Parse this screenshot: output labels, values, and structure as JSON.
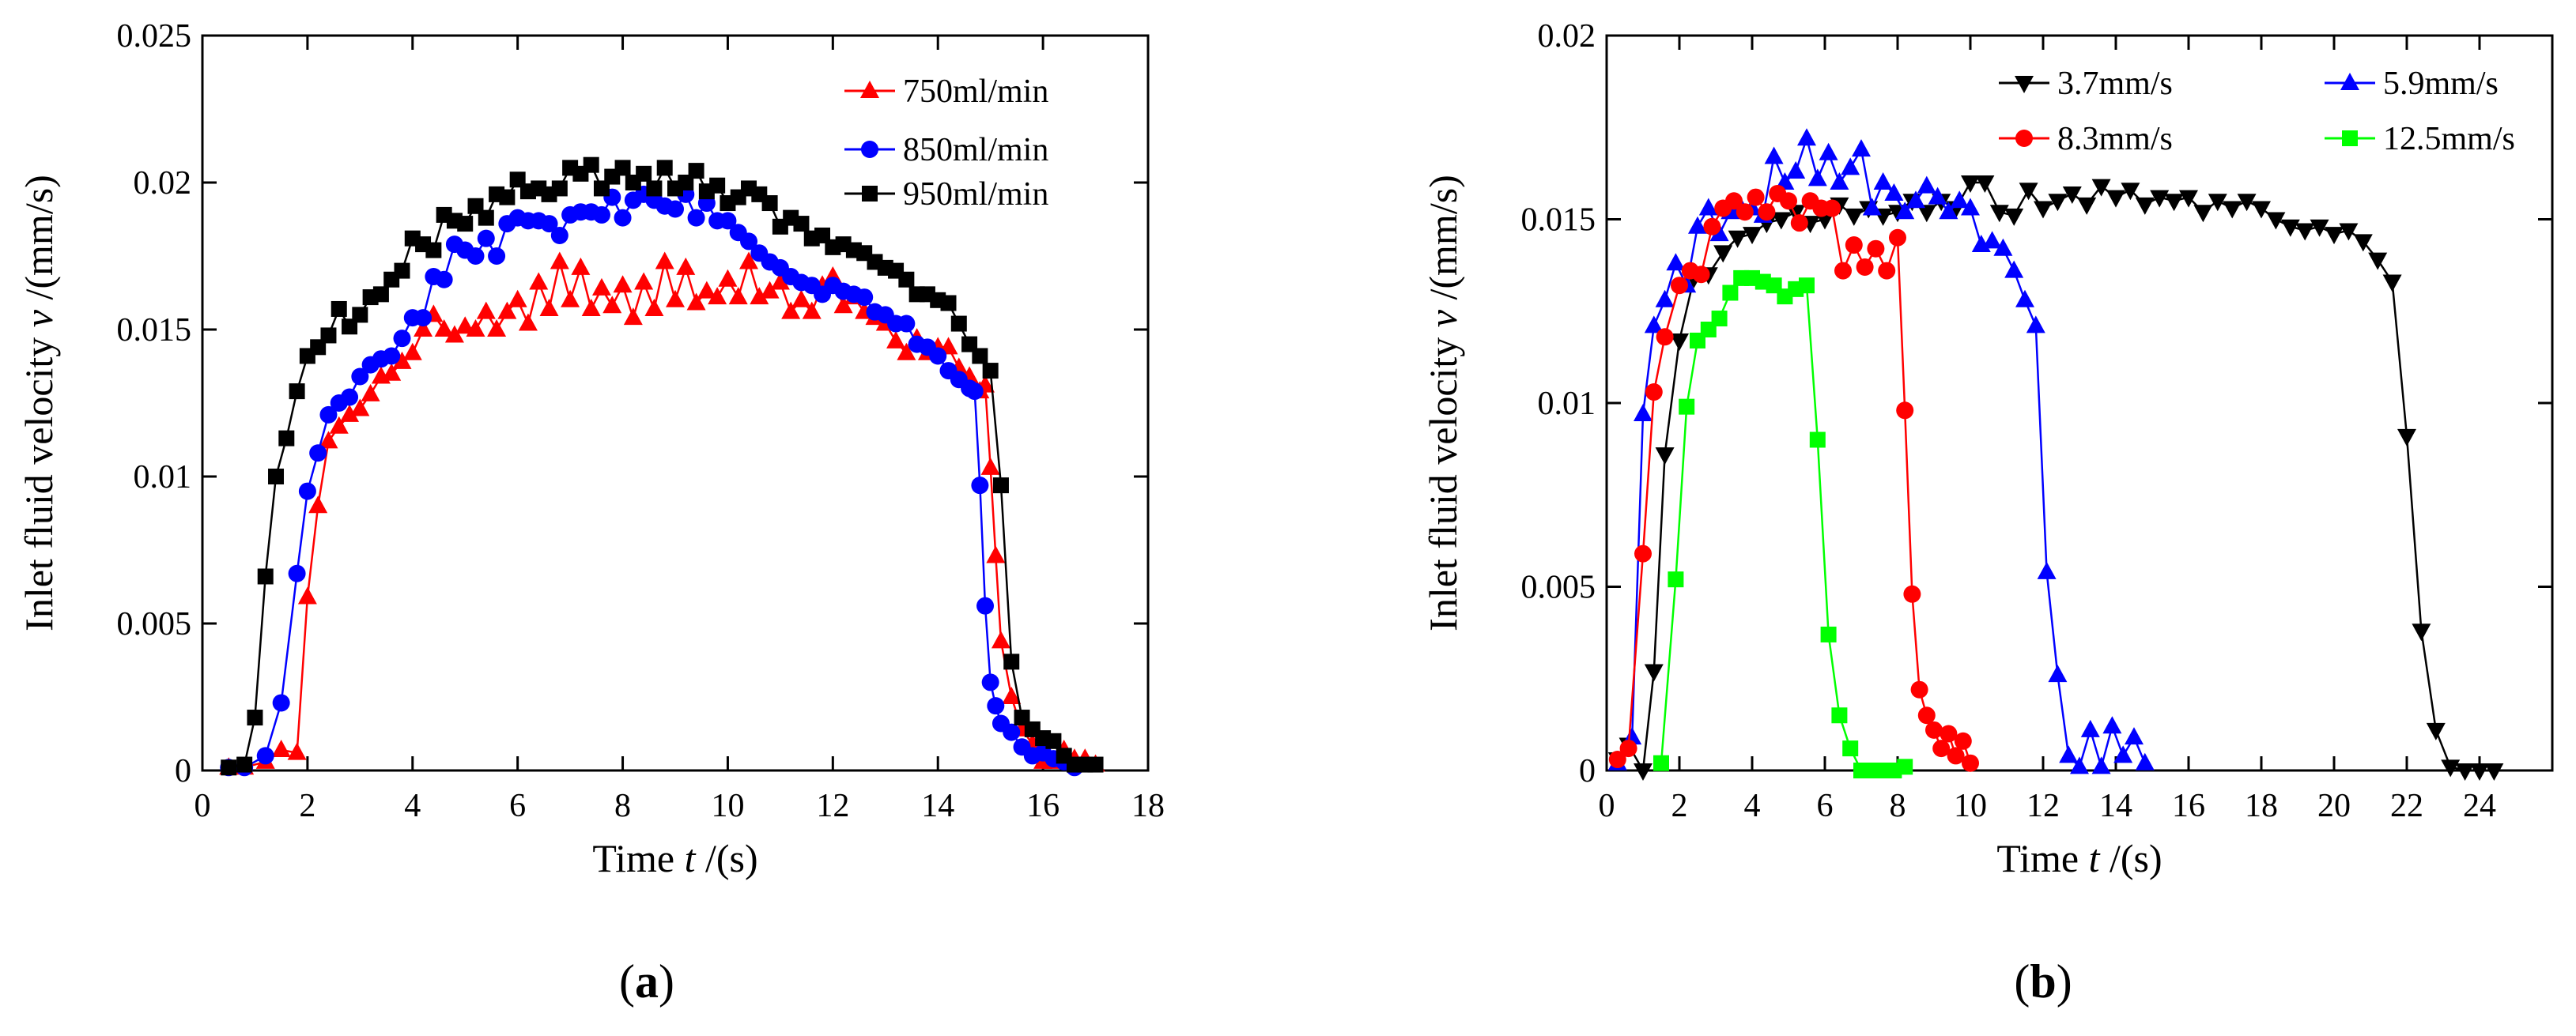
{
  "chart_data": [
    {
      "type": "line",
      "panel_label": "(a)",
      "panel_letter": "a",
      "xlabel_prefix": "Time ",
      "xlabel_var": "t",
      "xlabel_suffix": " /(s)",
      "ylabel_prefix": "Inlet fluid velocity ",
      "ylabel_var": "v",
      "ylabel_suffix": " /(mm/s)",
      "xlim": [
        0,
        18
      ],
      "ylim": [
        0,
        0.025
      ],
      "xticks": [
        0,
        2,
        4,
        6,
        8,
        10,
        12,
        14,
        16,
        18
      ],
      "yticks": [
        0,
        0.005,
        0.01,
        0.015,
        0.02,
        0.025
      ],
      "xtick_labels": [
        "0",
        "2",
        "4",
        "6",
        "8",
        "10",
        "12",
        "14",
        "16",
        "18"
      ],
      "ytick_labels": [
        "0",
        "0.005",
        "0.01",
        "0.015",
        "0.02",
        "0.025"
      ],
      "legend_position": "top-right",
      "series": [
        {
          "name": "750ml/min",
          "color": "#ff0000",
          "marker": "triangle-up",
          "x": [
            0.5,
            0.8,
            1.2,
            1.5,
            1.8,
            2.0,
            2.2,
            2.4,
            2.6,
            2.8,
            3.0,
            3.2,
            3.4,
            3.6,
            3.8,
            4.0,
            4.2,
            4.4,
            4.6,
            4.8,
            5.0,
            5.2,
            5.4,
            5.6,
            5.8,
            6.0,
            6.2,
            6.4,
            6.6,
            6.8,
            7.0,
            7.2,
            7.4,
            7.6,
            7.8,
            8.0,
            8.2,
            8.4,
            8.6,
            8.8,
            9.0,
            9.2,
            9.4,
            9.6,
            9.8,
            10.0,
            10.2,
            10.4,
            10.6,
            10.8,
            11.0,
            11.2,
            11.4,
            11.6,
            11.8,
            12.0,
            12.2,
            12.4,
            12.6,
            12.8,
            13.0,
            13.2,
            13.4,
            13.6,
            13.8,
            14.0,
            14.2,
            14.4,
            14.6,
            14.8,
            14.9,
            15.0,
            15.1,
            15.2,
            15.4,
            15.6,
            15.8,
            16.0,
            16.2,
            16.4,
            16.6,
            16.8,
            17.0
          ],
          "y": [
            0.0001,
            0.0001,
            0.0003,
            0.0007,
            0.0006,
            0.0059,
            0.009,
            0.0112,
            0.0117,
            0.0121,
            0.0123,
            0.0128,
            0.0134,
            0.0135,
            0.0139,
            0.0142,
            0.015,
            0.0155,
            0.015,
            0.0148,
            0.0151,
            0.015,
            0.0156,
            0.015,
            0.0156,
            0.016,
            0.0152,
            0.0166,
            0.0157,
            0.0173,
            0.016,
            0.0171,
            0.0157,
            0.0164,
            0.0158,
            0.0165,
            0.0154,
            0.0166,
            0.0157,
            0.0173,
            0.016,
            0.0171,
            0.0159,
            0.0163,
            0.0161,
            0.0167,
            0.0161,
            0.0173,
            0.0161,
            0.0163,
            0.0166,
            0.0156,
            0.016,
            0.0156,
            0.0165,
            0.0168,
            0.0158,
            0.0161,
            0.0156,
            0.0154,
            0.0152,
            0.0146,
            0.0142,
            0.0147,
            0.0142,
            0.0144,
            0.0144,
            0.0137,
            0.0134,
            0.0129,
            0.0131,
            0.0103,
            0.0073,
            0.0044,
            0.0025,
            0.0014,
            0.0009,
            0.0003,
            0.0003,
            0.0007,
            0.0004,
            0.0004,
            0.0002
          ]
        },
        {
          "name": "850ml/min",
          "color": "#0000ff",
          "marker": "circle",
          "x": [
            0.5,
            0.8,
            1.2,
            1.5,
            1.8,
            2.0,
            2.2,
            2.4,
            2.6,
            2.8,
            3.0,
            3.2,
            3.4,
            3.6,
            3.8,
            4.0,
            4.2,
            4.4,
            4.6,
            4.8,
            5.0,
            5.2,
            5.4,
            5.6,
            5.8,
            6.0,
            6.2,
            6.4,
            6.6,
            6.8,
            7.0,
            7.2,
            7.4,
            7.6,
            7.8,
            8.0,
            8.2,
            8.4,
            8.6,
            8.8,
            9.0,
            9.2,
            9.4,
            9.6,
            9.8,
            10.0,
            10.2,
            10.4,
            10.6,
            10.8,
            11.0,
            11.2,
            11.4,
            11.6,
            11.8,
            12.0,
            12.2,
            12.4,
            12.6,
            12.8,
            13.0,
            13.2,
            13.4,
            13.6,
            13.8,
            14.0,
            14.2,
            14.4,
            14.6,
            14.7,
            14.8,
            14.9,
            15.0,
            15.1,
            15.2,
            15.4,
            15.6,
            15.8,
            16.0,
            16.2,
            16.4,
            16.6
          ],
          "y": [
            0.0001,
            0.0001,
            0.0005,
            0.0023,
            0.0067,
            0.0095,
            0.0108,
            0.0121,
            0.0125,
            0.0127,
            0.0134,
            0.0138,
            0.014,
            0.0141,
            0.0147,
            0.0154,
            0.0154,
            0.0168,
            0.0167,
            0.0179,
            0.0177,
            0.0175,
            0.0181,
            0.0175,
            0.0186,
            0.0188,
            0.0187,
            0.0187,
            0.0186,
            0.0182,
            0.0189,
            0.019,
            0.019,
            0.0189,
            0.0195,
            0.0188,
            0.0194,
            0.0196,
            0.0194,
            0.0192,
            0.0191,
            0.0196,
            0.0188,
            0.0193,
            0.0187,
            0.0187,
            0.0183,
            0.018,
            0.0176,
            0.0173,
            0.0171,
            0.0168,
            0.0166,
            0.0165,
            0.0162,
            0.0165,
            0.0163,
            0.0162,
            0.0161,
            0.0156,
            0.0155,
            0.0152,
            0.0152,
            0.0145,
            0.0144,
            0.0141,
            0.0136,
            0.0133,
            0.013,
            0.0129,
            0.0097,
            0.0056,
            0.003,
            0.0022,
            0.0016,
            0.0013,
            0.0008,
            0.0005,
            0.0006,
            0.0004,
            0.0003,
            0.0001
          ]
        },
        {
          "name": "950ml/min",
          "color": "#000000",
          "marker": "square",
          "x": [
            0.5,
            0.8,
            1.0,
            1.2,
            1.4,
            1.6,
            1.8,
            2.0,
            2.2,
            2.4,
            2.6,
            2.8,
            3.0,
            3.2,
            3.4,
            3.6,
            3.8,
            4.0,
            4.2,
            4.4,
            4.6,
            4.8,
            5.0,
            5.2,
            5.4,
            5.6,
            5.8,
            6.0,
            6.2,
            6.4,
            6.6,
            6.8,
            7.0,
            7.2,
            7.4,
            7.6,
            7.8,
            8.0,
            8.2,
            8.4,
            8.6,
            8.8,
            9.0,
            9.2,
            9.4,
            9.6,
            9.8,
            10.0,
            10.2,
            10.4,
            10.6,
            10.8,
            11.0,
            11.2,
            11.4,
            11.6,
            11.8,
            12.0,
            12.2,
            12.4,
            12.6,
            12.8,
            13.0,
            13.2,
            13.4,
            13.6,
            13.8,
            14.0,
            14.2,
            14.4,
            14.6,
            14.8,
            15.0,
            15.2,
            15.4,
            15.6,
            15.8,
            16.0,
            16.2,
            16.4,
            16.6,
            16.8,
            17.0
          ],
          "y": [
            0.0001,
            0.0002,
            0.0018,
            0.0066,
            0.01,
            0.0113,
            0.0129,
            0.0141,
            0.0144,
            0.0148,
            0.0157,
            0.0151,
            0.0155,
            0.0161,
            0.0162,
            0.0167,
            0.017,
            0.0181,
            0.0179,
            0.0177,
            0.0189,
            0.0187,
            0.0186,
            0.0192,
            0.0188,
            0.0196,
            0.0195,
            0.0201,
            0.0197,
            0.0198,
            0.0196,
            0.0198,
            0.0205,
            0.0203,
            0.0206,
            0.0198,
            0.0202,
            0.0205,
            0.02,
            0.0203,
            0.0198,
            0.0205,
            0.0198,
            0.02,
            0.0204,
            0.0197,
            0.0199,
            0.0193,
            0.0195,
            0.0198,
            0.0196,
            0.0193,
            0.0185,
            0.0188,
            0.0186,
            0.0181,
            0.0182,
            0.0178,
            0.0179,
            0.0177,
            0.0176,
            0.0173,
            0.0171,
            0.017,
            0.0167,
            0.0162,
            0.0162,
            0.016,
            0.0159,
            0.0152,
            0.0145,
            0.0141,
            0.0136,
            0.0097,
            0.0037,
            0.0018,
            0.0014,
            0.0011,
            0.001,
            0.0005,
            0.0002,
            0.0002,
            0.0002
          ]
        }
      ]
    },
    {
      "type": "line",
      "panel_label": "(b)",
      "panel_letter": "b",
      "xlabel_prefix": "Time ",
      "xlabel_var": "t",
      "xlabel_suffix": " /(s)",
      "ylabel_prefix": "Inlet fluid velocity ",
      "ylabel_var": "v",
      "ylabel_suffix": " /(mm/s)",
      "xlim": [
        0,
        26
      ],
      "ylim": [
        0,
        0.02
      ],
      "xticks": [
        0,
        2,
        4,
        6,
        8,
        10,
        12,
        14,
        16,
        18,
        20,
        22,
        24
      ],
      "yticks": [
        0,
        0.005,
        0.01,
        0.015,
        0.02
      ],
      "xtick_labels": [
        "0",
        "2",
        "4",
        "6",
        "8",
        "10",
        "12",
        "14",
        "16",
        "18",
        "20",
        "22",
        "24"
      ],
      "ytick_labels": [
        "0",
        "0.005",
        "0.01",
        "0.015",
        "0.02"
      ],
      "legend_position": "top-right",
      "series": [
        {
          "name": "3.7mm/s",
          "color": "#000000",
          "marker": "triangle-down",
          "x": [
            0.3,
            0.6,
            1.0,
            1.3,
            1.6,
            2.0,
            2.4,
            2.8,
            3.2,
            3.6,
            4.0,
            4.4,
            4.8,
            5.2,
            5.6,
            6.0,
            6.4,
            6.8,
            7.2,
            7.6,
            8.0,
            8.4,
            8.8,
            9.2,
            9.6,
            10.0,
            10.4,
            10.8,
            11.2,
            11.6,
            12.0,
            12.4,
            12.8,
            13.2,
            13.6,
            14.0,
            14.4,
            14.8,
            15.2,
            15.6,
            16.0,
            16.4,
            16.8,
            17.2,
            17.6,
            18.0,
            18.4,
            18.8,
            19.2,
            19.6,
            20.0,
            20.4,
            20.8,
            21.2,
            21.6,
            22.0,
            22.4,
            22.8,
            23.2,
            23.6,
            24.0,
            24.4
          ],
          "y": [
            0.0003,
            0.0007,
            0.0,
            0.0027,
            0.0086,
            0.0117,
            0.0134,
            0.0135,
            0.0141,
            0.0145,
            0.0146,
            0.0149,
            0.015,
            0.0152,
            0.0149,
            0.015,
            0.0154,
            0.0151,
            0.0153,
            0.0151,
            0.0152,
            0.0155,
            0.0152,
            0.0155,
            0.0153,
            0.016,
            0.016,
            0.0152,
            0.0151,
            0.0158,
            0.0153,
            0.0155,
            0.0157,
            0.0154,
            0.0159,
            0.0156,
            0.0158,
            0.0154,
            0.0156,
            0.0155,
            0.0156,
            0.0152,
            0.0155,
            0.0153,
            0.0155,
            0.0153,
            0.015,
            0.0148,
            0.0147,
            0.0148,
            0.0146,
            0.0147,
            0.0144,
            0.0139,
            0.0133,
            0.0091,
            0.0038,
            0.0011,
            0.0001,
            0.0,
            0.0,
            0.0
          ]
        },
        {
          "name": "5.9mm/s",
          "color": "#0000ff",
          "marker": "triangle-up",
          "x": [
            0.3,
            0.7,
            1.0,
            1.3,
            1.6,
            1.9,
            2.2,
            2.5,
            2.8,
            3.1,
            3.4,
            3.7,
            4.0,
            4.3,
            4.6,
            4.9,
            5.2,
            5.5,
            5.8,
            6.1,
            6.4,
            6.7,
            7.0,
            7.3,
            7.6,
            7.9,
            8.2,
            8.5,
            8.8,
            9.1,
            9.4,
            9.7,
            10.0,
            10.3,
            10.6,
            10.9,
            11.2,
            11.5,
            11.8,
            12.1,
            12.4,
            12.7,
            13.0,
            13.3,
            13.6,
            13.9,
            14.2,
            14.5,
            14.8
          ],
          "y": [
            0.0002,
            0.0009,
            0.0097,
            0.0121,
            0.0128,
            0.0138,
            0.0132,
            0.0148,
            0.0153,
            0.0146,
            0.0152,
            0.0153,
            0.0153,
            0.0151,
            0.0167,
            0.016,
            0.0163,
            0.0172,
            0.0161,
            0.0168,
            0.016,
            0.0164,
            0.0169,
            0.0153,
            0.016,
            0.0157,
            0.0152,
            0.0155,
            0.0159,
            0.0156,
            0.0152,
            0.0155,
            0.0153,
            0.0143,
            0.0144,
            0.0142,
            0.0136,
            0.0128,
            0.0121,
            0.0054,
            0.0026,
            0.0004,
            0.0001,
            0.0011,
            0.0001,
            0.0012,
            0.0004,
            0.0009,
            0.0002
          ]
        },
        {
          "name": "8.3mm/s",
          "color": "#ff0000",
          "marker": "circle",
          "x": [
            0.3,
            0.6,
            1.0,
            1.3,
            1.6,
            2.0,
            2.3,
            2.6,
            2.9,
            3.2,
            3.5,
            3.8,
            4.1,
            4.4,
            4.7,
            5.0,
            5.3,
            5.6,
            5.9,
            6.2,
            6.5,
            6.8,
            7.1,
            7.4,
            7.7,
            8.0,
            8.2,
            8.4,
            8.6,
            8.8,
            9.0,
            9.2,
            9.4,
            9.6,
            9.8,
            10.0
          ],
          "y": [
            0.0003,
            0.0006,
            0.0059,
            0.0103,
            0.0118,
            0.0132,
            0.0136,
            0.0135,
            0.0148,
            0.0153,
            0.0155,
            0.0152,
            0.0156,
            0.0152,
            0.0157,
            0.0155,
            0.0149,
            0.0155,
            0.0153,
            0.0153,
            0.0136,
            0.0143,
            0.0137,
            0.0142,
            0.0136,
            0.0145,
            0.0098,
            0.0048,
            0.0022,
            0.0015,
            0.0011,
            0.0006,
            0.001,
            0.0004,
            0.0008,
            0.0002
          ]
        },
        {
          "name": "12.5mm/s",
          "color": "#00ff00",
          "marker": "square",
          "x": [
            1.5,
            1.9,
            2.2,
            2.5,
            2.8,
            3.1,
            3.4,
            3.7,
            4.0,
            4.3,
            4.6,
            4.9,
            5.2,
            5.5,
            5.8,
            6.1,
            6.4,
            6.7,
            7.0,
            7.3,
            7.6,
            7.9,
            8.2
          ],
          "y": [
            0.0002,
            0.0052,
            0.0099,
            0.0117,
            0.012,
            0.0123,
            0.013,
            0.0134,
            0.0134,
            0.0133,
            0.0132,
            0.0129,
            0.0131,
            0.0132,
            0.009,
            0.0037,
            0.0015,
            0.0006,
            0.0,
            0.0,
            0.0,
            0.0,
            0.0001
          ]
        }
      ]
    }
  ]
}
